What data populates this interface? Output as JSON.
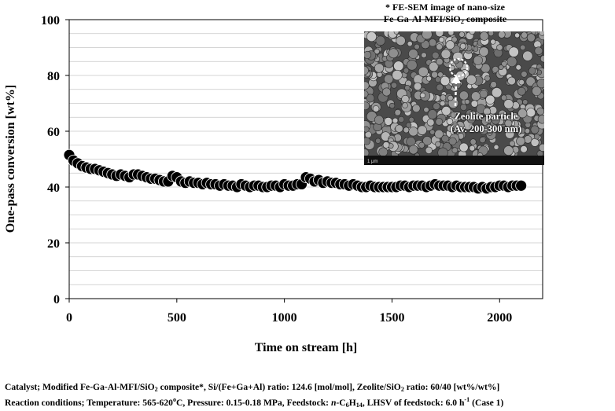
{
  "chart_data": {
    "type": "scatter",
    "xlabel": "Time on stream [h]",
    "ylabel": "One-pass conversion [wt%]",
    "xlim": [
      0,
      2200
    ],
    "ylim": [
      0,
      100
    ],
    "x_ticks": [
      "0",
      "500",
      "1000",
      "1500",
      "2000"
    ],
    "y_ticks": [
      "0",
      "20",
      "40",
      "60",
      "80",
      "100"
    ],
    "grid": "horizontal",
    "marker_color": "#000000",
    "series": [
      {
        "x": [
          0,
          20,
          40,
          60,
          80,
          100,
          120,
          140,
          160,
          180,
          200,
          220,
          240,
          260,
          280,
          300,
          320,
          340,
          360,
          380,
          400,
          420,
          440,
          460,
          480,
          500,
          520,
          540,
          560,
          580,
          600,
          620,
          640,
          660,
          680,
          700,
          720,
          740,
          760,
          780,
          800,
          820,
          840,
          860,
          880,
          900,
          920,
          940,
          960,
          980,
          1000,
          1020,
          1040,
          1060,
          1080,
          1100,
          1120,
          1140,
          1160,
          1180,
          1200,
          1220,
          1240,
          1260,
          1280,
          1300,
          1320,
          1340,
          1360,
          1380,
          1400,
          1420,
          1440,
          1460,
          1480,
          1500,
          1520,
          1540,
          1560,
          1580,
          1600,
          1620,
          1640,
          1660,
          1680,
          1700,
          1720,
          1740,
          1760,
          1780,
          1800,
          1820,
          1840,
          1860,
          1880,
          1900,
          1920,
          1940,
          1960,
          1980,
          2000,
          2020,
          2040,
          2060,
          2080,
          2100
        ],
        "y": [
          51.5,
          49.5,
          48.5,
          47.5,
          47,
          46.5,
          46.5,
          46,
          45.5,
          45,
          44.5,
          44,
          44.5,
          44,
          43.5,
          44.5,
          44.5,
          44,
          43.5,
          43,
          43,
          42.5,
          42,
          42,
          44,
          43.5,
          42,
          41.5,
          42,
          41.5,
          41.5,
          41,
          41.5,
          41,
          41,
          40.5,
          41,
          40.5,
          40.5,
          40,
          41,
          40.5,
          40,
          40.5,
          40.5,
          40,
          40,
          40.5,
          40.5,
          40,
          41,
          40.5,
          40.5,
          41,
          41,
          43.5,
          43,
          42,
          42.5,
          41.5,
          42,
          41.5,
          41.5,
          41,
          41,
          40.5,
          41,
          40.5,
          40,
          40,
          40.5,
          40,
          40,
          40,
          40,
          40,
          40,
          40.5,
          40.5,
          40,
          40.5,
          40.5,
          40.5,
          40,
          40.5,
          41,
          40.5,
          40.5,
          40.5,
          40,
          40.5,
          40,
          40,
          40,
          40,
          39.5,
          40,
          39.5,
          40,
          40,
          40.5,
          40.5,
          40,
          40.5,
          40.5,
          40.5
        ]
      }
    ]
  },
  "inset": {
    "title_line1": "* FE-SEM image of nano-size",
    "title_line2_pre": "Fe-Ga-Al-MFI/SiO",
    "title_line2_sub": "2",
    "title_line2_post": " composite",
    "label_line1": "Zeolite particle",
    "label_line2": "(Av. 200-300 nm)",
    "scale_text": "1 μm"
  },
  "footer": {
    "line1_pre": "Catalyst; Modified Fe-Ga-Al-MFI/SiO",
    "line1_sub": "2",
    "line1_mid": " composite*,  Si/(Fe+Ga+Al) ratio: 124.6 [mol/mol], Zeolite/SiO",
    "line1_sub2": "2",
    "line1_post": " ratio: 60/40 [wt%/wt%]",
    "line2_a": "Reaction conditions; Temperature: 565-620",
    "line2_sup": "o",
    "line2_b": "C, Pressure: 0.15-0.18 MPa, Feedstock: ",
    "line2_italic": "n",
    "line2_c": "-C",
    "line2_sub1": "6",
    "line2_d": "H",
    "line2_sub2": "14",
    "line2_e": ", LHSV of feedstock: 6.0 h",
    "line2_sup2": "-1",
    "line2_f": " (Case 1)"
  }
}
